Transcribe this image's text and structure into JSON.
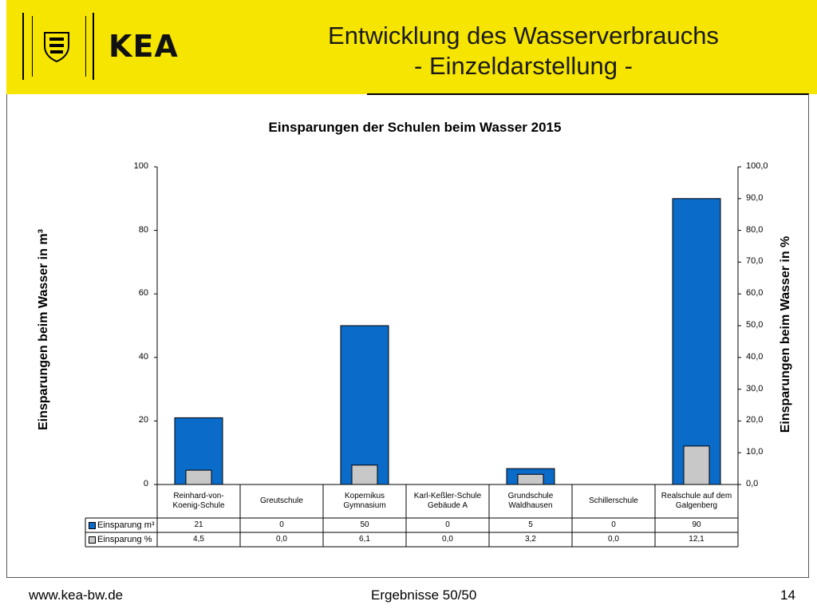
{
  "header": {
    "brand": "KEA",
    "title_line1": "Entwicklung des Wasserverbrauchs",
    "title_line2": "- Einzeldarstellung -"
  },
  "chart_data": {
    "type": "bar",
    "title": "Einsparungen der Schulen beim Wasser 2015",
    "ylabel": "Einsparungen beim Wasser in m³",
    "y2label": "Einsparungen beim Wasser in %",
    "ylim": [
      0,
      100
    ],
    "y2lim": [
      0,
      100
    ],
    "yticks": [
      "0",
      "20",
      "40",
      "60",
      "80",
      "100"
    ],
    "y2ticks": [
      "0,0",
      "10,0",
      "20,0",
      "30,0",
      "40,0",
      "50,0",
      "60,0",
      "70,0",
      "80,0",
      "90,0",
      "100,0"
    ],
    "categories": [
      "Reinhard-von-Koenig-Schule",
      "Greutschule",
      "Kopernikus Gymnasium",
      "Karl-Keßler-Schule Gebäude A",
      "Grundschule Waldhausen",
      "Schillerschule",
      "Realschule auf dem Galgenberg"
    ],
    "series": [
      {
        "name": "Einsparung m³",
        "axis": "left",
        "color": "#0b6bc9",
        "values": [
          21,
          0,
          50,
          0,
          5,
          0,
          90
        ],
        "labels": [
          "21",
          "0",
          "50",
          "0",
          "5",
          "0",
          "90"
        ]
      },
      {
        "name": "Einsparung %",
        "axis": "right",
        "color": "#c8c8c8",
        "values": [
          4.5,
          0.0,
          6.1,
          0.0,
          3.2,
          0.0,
          12.1
        ],
        "labels": [
          "4,5",
          "0,0",
          "6,1",
          "0,0",
          "3,2",
          "0,0",
          "12,1"
        ]
      }
    ],
    "grid": false,
    "legend": "data-table"
  },
  "footer": {
    "url": "www.kea-bw.de",
    "center": "Ergebnisse 50/50",
    "page": "14"
  }
}
